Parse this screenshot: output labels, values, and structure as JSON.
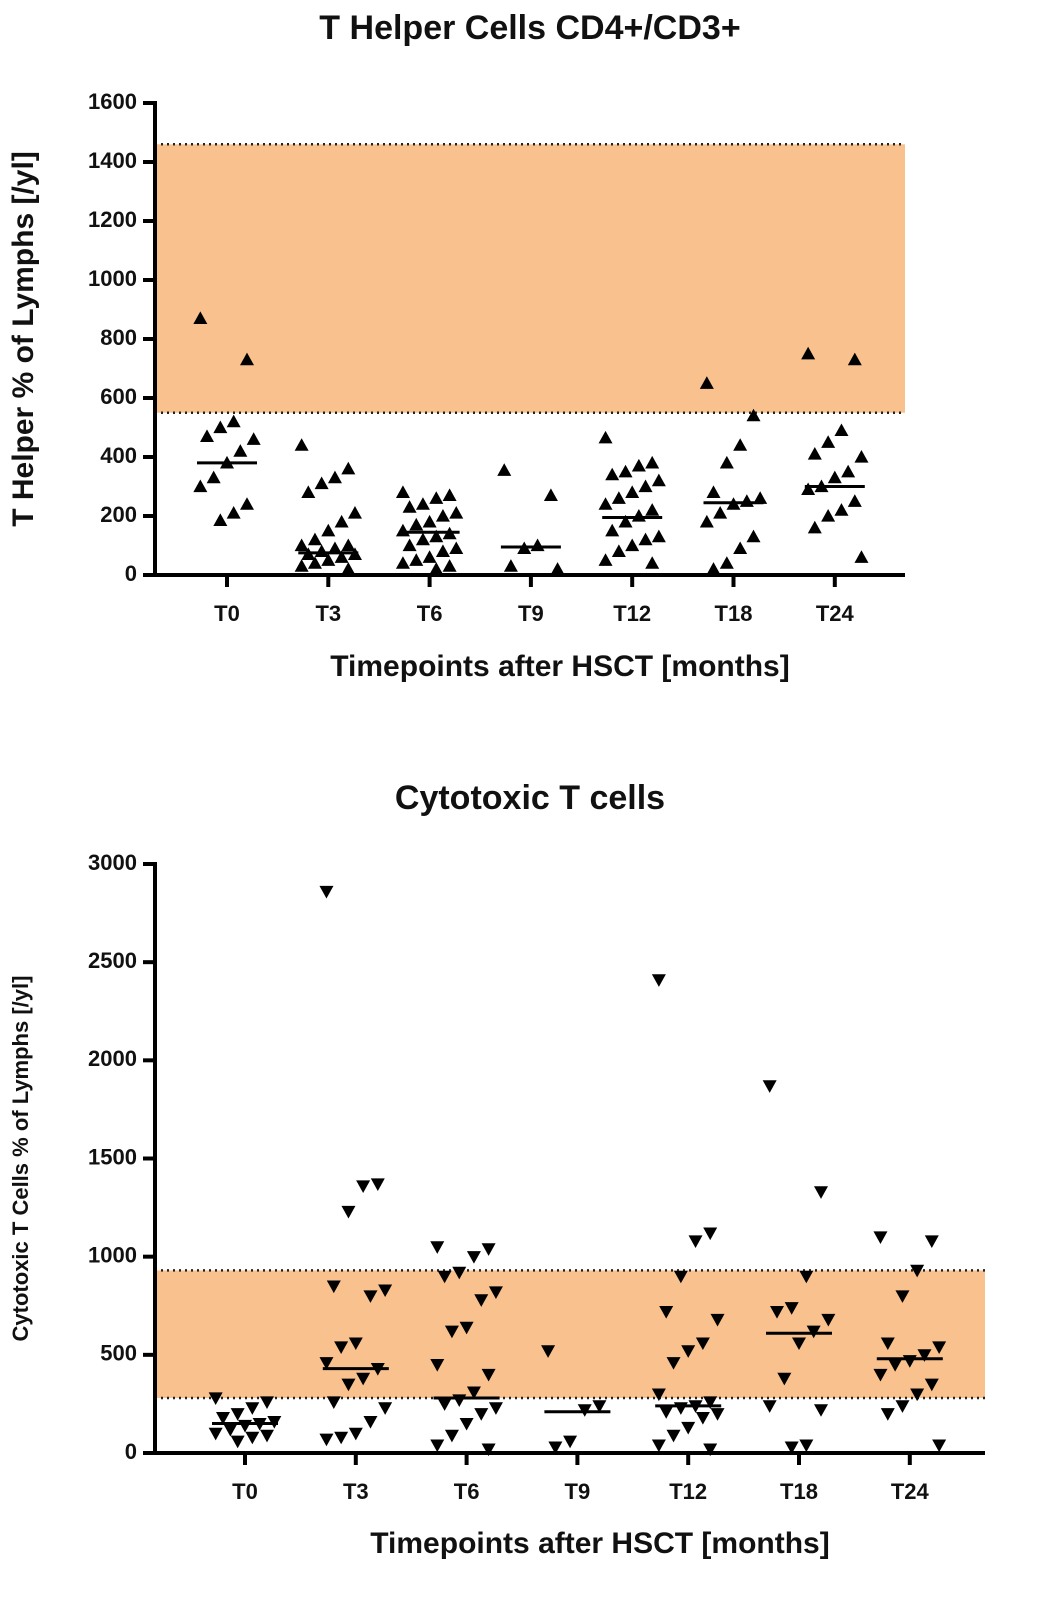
{
  "chart_data": [
    {
      "type": "dotplot",
      "title": "T Helper Cells CD4+/CD3+",
      "x_label": "Timepoints after HSCT [months]",
      "y_label": "T Helper % of Lymphs [/yl]",
      "categories": [
        "T0",
        "T3",
        "T6",
        "T9",
        "T12",
        "T18",
        "T24"
      ],
      "values": [
        [
          870,
          730,
          520,
          500,
          470,
          460,
          420,
          380,
          330,
          300,
          240,
          210,
          185
        ],
        [
          440,
          360,
          330,
          310,
          280,
          210,
          180,
          150,
          120,
          100,
          100,
          90,
          80,
          70,
          70,
          60,
          50,
          40,
          30,
          20
        ],
        [
          280,
          270,
          260,
          240,
          230,
          210,
          200,
          180,
          170,
          150,
          140,
          130,
          120,
          100,
          90,
          80,
          60,
          50,
          40,
          30,
          20
        ],
        [
          355,
          270,
          100,
          90,
          30,
          20
        ],
        [
          465,
          380,
          370,
          350,
          340,
          320,
          300,
          280,
          260,
          240,
          220,
          200,
          180,
          150,
          130,
          120,
          100,
          80,
          50,
          40
        ],
        [
          650,
          540,
          440,
          380,
          280,
          260,
          250,
          240,
          210,
          180,
          130,
          90,
          40,
          20
        ],
        [
          750,
          730,
          490,
          450,
          410,
          400,
          350,
          330,
          300,
          290,
          250,
          220,
          200,
          160,
          60
        ]
      ],
      "medians": [
        380,
        75,
        145,
        95,
        195,
        245,
        300
      ],
      "marker": "triangle-up",
      "color": "#000000",
      "band": [
        550,
        1460
      ],
      "band_color": "#f8c18e",
      "ylim": [
        0,
        1600
      ],
      "yticks": [
        0,
        200,
        400,
        600,
        800,
        1000,
        1200,
        1400,
        1600
      ]
    },
    {
      "type": "dotplot",
      "title": "Cytotoxic T cells",
      "x_label": "Timepoints after HSCT [months]",
      "y_label": "Cytotoxic T Cells % of Lymphs [/yl]",
      "categories": [
        "T0",
        "T3",
        "T6",
        "T9",
        "T12",
        "T18",
        "T24"
      ],
      "values": [
        [
          280,
          260,
          230,
          200,
          180,
          160,
          150,
          140,
          120,
          100,
          90,
          80,
          60
        ],
        [
          2860,
          1370,
          1360,
          1230,
          850,
          830,
          800,
          560,
          540,
          460,
          430,
          380,
          350,
          260,
          230,
          160,
          100,
          80,
          70
        ],
        [
          1050,
          1040,
          1000,
          920,
          900,
          820,
          780,
          640,
          620,
          450,
          400,
          310,
          270,
          250,
          230,
          200,
          150,
          90,
          40,
          20
        ],
        [
          520,
          240,
          220,
          60,
          30
        ],
        [
          2410,
          1120,
          1080,
          900,
          720,
          680,
          560,
          520,
          460,
          300,
          260,
          240,
          230,
          210,
          200,
          180,
          130,
          90,
          40,
          20
        ],
        [
          1870,
          1330,
          900,
          740,
          720,
          680,
          620,
          560,
          380,
          240,
          220,
          40,
          30
        ],
        [
          1100,
          1080,
          930,
          800,
          560,
          540,
          500,
          470,
          450,
          400,
          350,
          300,
          240,
          200,
          40
        ]
      ],
      "medians": [
        150,
        430,
        280,
        210,
        240,
        610,
        480
      ],
      "marker": "triangle-down",
      "color": "#000000",
      "band": [
        280,
        930
      ],
      "band_color": "#f8c18e",
      "ylim": [
        0,
        3000
      ],
      "yticks": [
        0,
        500,
        1000,
        1500,
        2000,
        2500,
        3000
      ]
    }
  ]
}
